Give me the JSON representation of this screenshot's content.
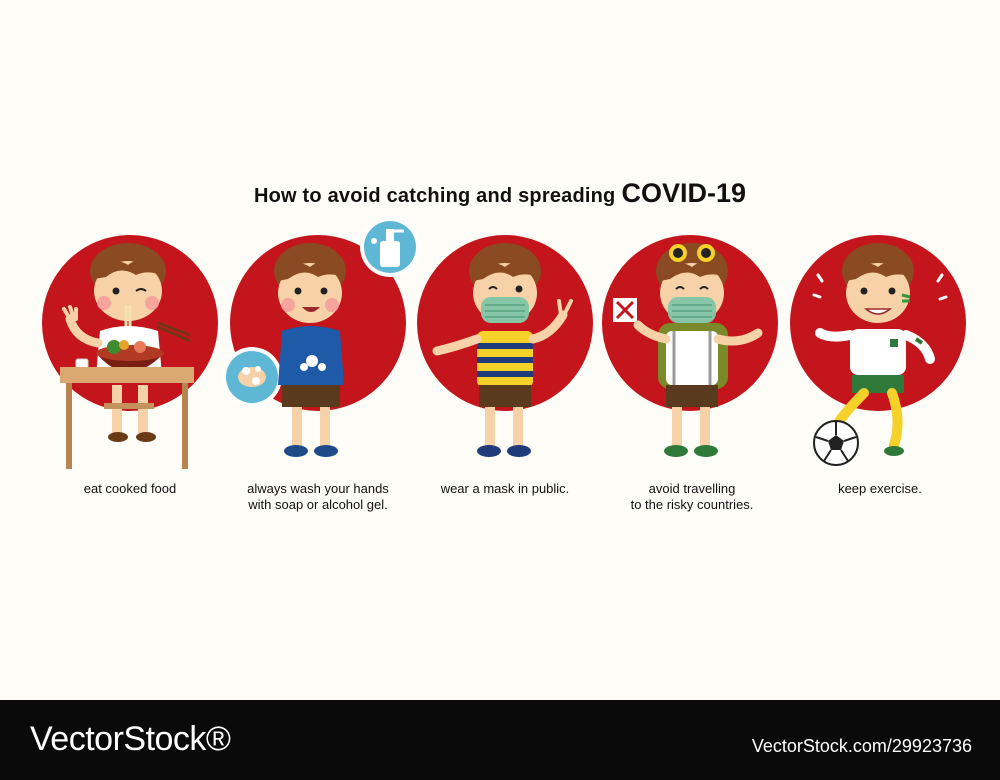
{
  "title": {
    "main": "How to avoid catching and spreading",
    "strong": "COVID-19"
  },
  "tips": [
    {
      "lines": [
        "eat cooked food"
      ],
      "icon": "eating-boy-icon"
    },
    {
      "lines": [
        "always wash your hands",
        "with soap or alcohol gel."
      ],
      "icon": "handwashing-boy-icon"
    },
    {
      "lines": [
        "wear a mask in public."
      ],
      "icon": "masked-boy-icon"
    },
    {
      "lines": [
        "avoid travelling",
        "to the risky countries."
      ],
      "icon": "traveller-boy-icon"
    },
    {
      "lines": [
        "keep exercise."
      ],
      "icon": "football-boy-icon"
    }
  ],
  "footer": {
    "logo": "VectorStock®",
    "id": "VectorStock.com/29923736"
  },
  "colors": {
    "circle": "#c4141c",
    "background": "#fefdf7",
    "footer": "#0a0a0a"
  }
}
